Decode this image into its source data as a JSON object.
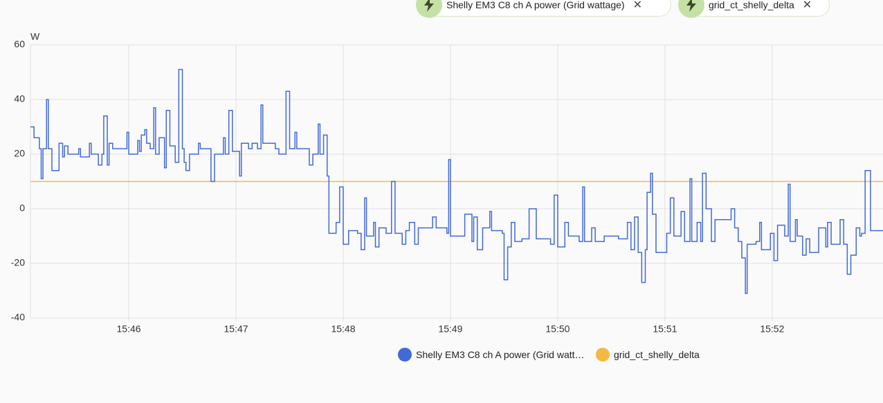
{
  "chart_data": {
    "type": "line",
    "step": true,
    "y_unit": "W",
    "chips": [
      "Shelly EM3 C8 ch A power (Grid wattage)",
      "grid_ct_shelly_delta"
    ],
    "xlim": [
      "15:45:05",
      "15:53:02"
    ],
    "xticks": [
      "15:46",
      "15:47",
      "15:48",
      "15:49",
      "15:50",
      "15:51",
      "15:52"
    ],
    "ylim": [
      -40,
      60
    ],
    "yticks": [
      -40,
      -20,
      0,
      20,
      40,
      60
    ],
    "grid": true,
    "series": [
      {
        "name": "Shelly EM3 C8 ch A power (Grid wattage)",
        "color": "#4169d8",
        "x": [
          "15:45:05",
          "15:45:07",
          "15:45:10",
          "15:45:11",
          "15:45:12",
          "15:45:14",
          "15:45:15",
          "15:45:17",
          "15:45:21",
          "15:45:23",
          "15:45:24",
          "15:45:26",
          "15:45:32",
          "15:45:33",
          "15:45:38",
          "15:45:39",
          "15:45:43",
          "15:45:45",
          "15:45:46",
          "15:45:48",
          "15:45:49",
          "15:45:51",
          "15:45:59",
          "15:46:00",
          "15:46:05",
          "15:46:06",
          "15:46:07",
          "15:46:09",
          "15:46:10",
          "15:46:12",
          "15:46:14",
          "15:46:15",
          "15:46:17",
          "15:46:20",
          "15:46:21",
          "15:46:23",
          "15:46:26",
          "15:46:28",
          "15:46:30",
          "15:46:31",
          "15:46:32",
          "15:46:34",
          "15:46:39",
          "15:46:40",
          "15:46:46",
          "15:46:48",
          "15:46:53",
          "15:46:54",
          "15:46:56",
          "15:46:58",
          "15:47:02",
          "15:47:03",
          "15:47:07",
          "15:47:09",
          "15:47:12",
          "15:47:14",
          "15:47:15",
          "15:47:22",
          "15:47:24",
          "15:47:28",
          "15:47:30",
          "15:47:33",
          "15:47:34",
          "15:47:41",
          "15:47:43",
          "15:47:46",
          "15:47:47",
          "15:47:49",
          "15:47:51",
          "15:47:52",
          "15:47:56",
          "15:47:58",
          "15:48:00",
          "15:48:03",
          "15:48:08",
          "15:48:10",
          "15:48:12",
          "15:48:13",
          "15:48:17",
          "15:48:18",
          "15:48:20",
          "15:48:24",
          "15:48:27",
          "15:48:29",
          "15:48:33",
          "15:48:35",
          "15:48:37",
          "15:48:40",
          "15:48:42",
          "15:48:50",
          "15:48:52",
          "15:48:58",
          "15:48:59",
          "15:49:00",
          "15:49:08",
          "15:49:12",
          "15:49:13",
          "15:49:15",
          "15:49:18",
          "15:49:22",
          "15:49:23",
          "15:49:29",
          "15:49:30",
          "15:49:32",
          "15:49:34",
          "15:49:36",
          "15:49:40",
          "15:49:44",
          "15:49:48",
          "15:49:56",
          "15:49:58",
          "15:50:00",
          "15:50:04",
          "15:50:06",
          "15:50:12",
          "15:50:14",
          "15:50:15",
          "15:50:19",
          "15:50:21",
          "15:50:26",
          "15:50:34",
          "15:50:39",
          "15:50:41",
          "15:50:43",
          "15:50:45",
          "15:50:47",
          "15:50:49",
          "15:50:50",
          "15:50:52",
          "15:50:53",
          "15:50:55",
          "15:51:01",
          "15:51:03",
          "15:51:05",
          "15:51:09",
          "15:51:11",
          "15:51:14",
          "15:51:15",
          "15:51:18",
          "15:51:20",
          "15:51:21",
          "15:51:23",
          "15:51:26",
          "15:51:28",
          "15:51:36",
          "15:51:37",
          "15:51:39",
          "15:51:41",
          "15:51:43",
          "15:51:45",
          "15:51:46",
          "15:51:51",
          "15:51:53",
          "15:51:54",
          "15:51:59",
          "15:52:01",
          "15:52:03",
          "15:52:07",
          "15:52:09",
          "15:52:10",
          "15:52:13",
          "15:52:14",
          "15:52:17",
          "15:52:19",
          "15:52:21",
          "15:52:26",
          "15:52:30",
          "15:52:31",
          "15:52:33",
          "15:52:38",
          "15:52:40",
          "15:52:42",
          "15:52:44",
          "15:52:47",
          "15:52:49",
          "15:52:50",
          "15:52:52",
          "15:52:55"
        ],
        "values": [
          30,
          26,
          22,
          11,
          22,
          40,
          22,
          14,
          24,
          19,
          23,
          20,
          22,
          19,
          24,
          20,
          16,
          20,
          34,
          16,
          24,
          22,
          28,
          20,
          25,
          21,
          27,
          29,
          24,
          22,
          37,
          20,
          26,
          15,
          36,
          23,
          17,
          51,
          22,
          17,
          14,
          20,
          24,
          22,
          10,
          20,
          26,
          20,
          36,
          21,
          12,
          24,
          22,
          24,
          22,
          38,
          24,
          22,
          20,
          43,
          22,
          28,
          22,
          16,
          20,
          31,
          20,
          27,
          12,
          -9,
          -5,
          8,
          -13,
          -8,
          -9,
          -15,
          4,
          -10,
          -5,
          -14,
          -7,
          -9,
          10,
          -9,
          -13,
          -8,
          -5,
          -13,
          -7,
          -3,
          -7,
          -9,
          18,
          -10,
          -2,
          -12,
          -3,
          -15,
          -7,
          -1,
          -8,
          -9,
          -26,
          -14,
          -5,
          -12,
          -11,
          0,
          -11,
          -13,
          5,
          -14,
          -5,
          -10,
          -12,
          8,
          -12,
          -7,
          -12,
          -10,
          -11,
          -5,
          -15,
          -3,
          -16,
          -27,
          -15,
          6,
          13,
          -2,
          -16,
          -9,
          4,
          -10,
          -1,
          -12,
          11,
          -12,
          -5,
          -12,
          13,
          0,
          -12,
          -4,
          -4,
          0,
          -7,
          -12,
          -18,
          -31,
          -13,
          -12,
          -5,
          -15,
          -9,
          -19,
          -6,
          -10,
          9,
          -12,
          -4,
          -10,
          -17,
          -11,
          -16,
          -7,
          -14,
          -5,
          -13,
          -4,
          -13,
          -24,
          -17,
          -7,
          -10,
          -9,
          14,
          -8
        ]
      },
      {
        "name": "grid_ct_shelly_delta",
        "color": "#f4b942",
        "x": [
          "15:45:05",
          "15:53:02"
        ],
        "values": [
          10,
          10
        ]
      }
    ]
  }
}
